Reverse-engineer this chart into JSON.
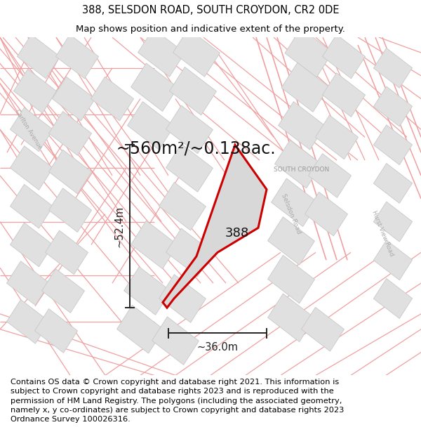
{
  "title_line1": "388, SELSDON ROAD, SOUTH CROYDON, CR2 0DE",
  "title_line2": "Map shows position and indicative extent of the property.",
  "area_text": "~560m²/~0.138ac.",
  "label_388": "388",
  "label_south_croydon": "SOUTH CROYDON",
  "label_selsdon_road": "Selsdon Road",
  "label_hurst_view": "Hurst View Road",
  "label_carlton": "Carlton Avenue",
  "dim_height": "~52.4m",
  "dim_width": "~36.0m",
  "footer_text": "Contains OS data © Crown copyright and database right 2021. This information is subject to Crown copyright and database rights 2023 and is reproduced with the permission of HM Land Registry. The polygons (including the associated geometry, namely x, y co-ordinates) are subject to Crown copyright and database rights 2023 Ordnance Survey 100026316.",
  "bg_color": "#ffffff",
  "map_bg": "#ffffff",
  "road_color": "#f0a0a0",
  "building_face": "#e0e0e0",
  "building_edge": "#c8c8c8",
  "highlight_stroke": "#cc0000",
  "highlight_fill": "#d8d8d8",
  "dim_color": "#222222",
  "title_fontsize": 10.5,
  "subtitle_fontsize": 9.5,
  "area_fontsize": 17,
  "footer_fontsize": 8.2
}
